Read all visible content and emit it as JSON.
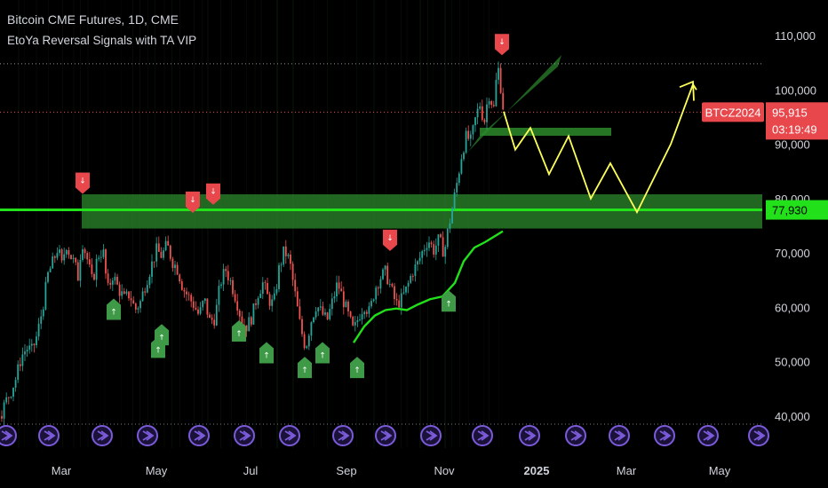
{
  "header": {
    "title": "Bitcoin CME Futures, 1D, CME",
    "indicator": "EtoYa Reversal Signals with TA VIP"
  },
  "chart_data": {
    "type": "line",
    "y_ticks": [
      "110,000",
      "100,000",
      "90,000",
      "80,000",
      "70,000",
      "60,000",
      "50,000",
      "40,000"
    ],
    "y_tick_values": [
      110000,
      100000,
      90000,
      80000,
      70000,
      60000,
      50000,
      40000
    ],
    "ylim": [
      35000,
      115000
    ],
    "x_ticks": [
      "Mar",
      "May",
      "Jul",
      "Sep",
      "Nov",
      "2025",
      "Mar",
      "May"
    ],
    "x_tick_bold": [
      false,
      false,
      false,
      false,
      false,
      true,
      false,
      false
    ],
    "support_line": {
      "value": 77930,
      "label": "77,930"
    },
    "zone": {
      "low": 74500,
      "high": 80800
    },
    "current": {
      "symbol": "BTCZ2024",
      "price": "95,915",
      "countdown": "03:19:49",
      "value": 95915
    },
    "high_level": 104800,
    "price_path": [
      {
        "t": 0,
        "v": 40000
      },
      {
        "t": 6,
        "v": 42500
      },
      {
        "t": 12,
        "v": 44500
      },
      {
        "t": 18,
        "v": 47000
      },
      {
        "t": 24,
        "v": 51000
      },
      {
        "t": 30,
        "v": 52500
      },
      {
        "t": 36,
        "v": 52000
      },
      {
        "t": 42,
        "v": 55000
      },
      {
        "t": 48,
        "v": 60000
      },
      {
        "t": 54,
        "v": 66000
      },
      {
        "t": 60,
        "v": 68500
      },
      {
        "t": 65,
        "v": 71000
      },
      {
        "t": 70,
        "v": 67500
      },
      {
        "t": 74,
        "v": 72000
      },
      {
        "t": 78,
        "v": 70000
      },
      {
        "t": 84,
        "v": 68000
      },
      {
        "t": 88,
        "v": 65500
      },
      {
        "t": 92,
        "v": 72500
      },
      {
        "t": 98,
        "v": 69000
      },
      {
        "t": 104,
        "v": 64500
      },
      {
        "t": 110,
        "v": 69500
      },
      {
        "t": 116,
        "v": 70500
      },
      {
        "t": 121,
        "v": 63000
      },
      {
        "t": 127,
        "v": 66000
      },
      {
        "t": 133,
        "v": 63500
      },
      {
        "t": 140,
        "v": 61500
      },
      {
        "t": 146,
        "v": 62500
      },
      {
        "t": 152,
        "v": 59500
      },
      {
        "t": 158,
        "v": 61000
      },
      {
        "t": 164,
        "v": 64500
      },
      {
        "t": 170,
        "v": 67500
      },
      {
        "t": 176,
        "v": 70500
      },
      {
        "t": 182,
        "v": 69500
      },
      {
        "t": 188,
        "v": 71500
      },
      {
        "t": 194,
        "v": 68500
      },
      {
        "t": 200,
        "v": 67000
      },
      {
        "t": 206,
        "v": 63500
      },
      {
        "t": 212,
        "v": 62000
      },
      {
        "t": 218,
        "v": 60500
      },
      {
        "t": 224,
        "v": 58500
      },
      {
        "t": 230,
        "v": 61500
      },
      {
        "t": 236,
        "v": 57500
      },
      {
        "t": 242,
        "v": 58000
      },
      {
        "t": 248,
        "v": 64500
      },
      {
        "t": 254,
        "v": 67000
      },
      {
        "t": 260,
        "v": 64500
      },
      {
        "t": 266,
        "v": 61500
      },
      {
        "t": 272,
        "v": 57500
      },
      {
        "t": 278,
        "v": 56500
      },
      {
        "t": 284,
        "v": 58500
      },
      {
        "t": 290,
        "v": 62500
      },
      {
        "t": 296,
        "v": 64500
      },
      {
        "t": 302,
        "v": 61500
      },
      {
        "t": 308,
        "v": 60500
      },
      {
        "t": 314,
        "v": 67000
      },
      {
        "t": 320,
        "v": 70500
      },
      {
        "t": 326,
        "v": 68500
      },
      {
        "t": 332,
        "v": 62500
      },
      {
        "t": 338,
        "v": 56500
      },
      {
        "t": 344,
        "v": 52500
      },
      {
        "t": 350,
        "v": 57500
      },
      {
        "t": 356,
        "v": 60500
      },
      {
        "t": 362,
        "v": 59000
      },
      {
        "t": 368,
        "v": 57500
      },
      {
        "t": 374,
        "v": 61000
      },
      {
        "t": 380,
        "v": 64500
      },
      {
        "t": 386,
        "v": 61500
      },
      {
        "t": 392,
        "v": 58500
      },
      {
        "t": 398,
        "v": 55500
      },
      {
        "t": 404,
        "v": 58500
      },
      {
        "t": 410,
        "v": 60500
      },
      {
        "t": 416,
        "v": 59000
      },
      {
        "t": 422,
        "v": 63500
      },
      {
        "t": 428,
        "v": 65500
      },
      {
        "t": 434,
        "v": 66500
      },
      {
        "t": 440,
        "v": 63500
      },
      {
        "t": 446,
        "v": 60500
      },
      {
        "t": 452,
        "v": 61500
      },
      {
        "t": 458,
        "v": 63500
      },
      {
        "t": 464,
        "v": 66500
      },
      {
        "t": 470,
        "v": 68000
      },
      {
        "t": 476,
        "v": 70500
      },
      {
        "t": 482,
        "v": 72500
      },
      {
        "t": 488,
        "v": 70500
      },
      {
        "t": 494,
        "v": 72500
      },
      {
        "t": 500,
        "v": 70000
      },
      {
        "t": 504,
        "v": 74000
      },
      {
        "t": 510,
        "v": 79000
      },
      {
        "t": 515,
        "v": 83500
      },
      {
        "t": 520,
        "v": 88500
      },
      {
        "t": 525,
        "v": 91500
      },
      {
        "t": 530,
        "v": 90500
      },
      {
        "t": 535,
        "v": 94500
      },
      {
        "t": 540,
        "v": 97500
      },
      {
        "t": 545,
        "v": 94000
      },
      {
        "t": 550,
        "v": 99500
      },
      {
        "t": 556,
        "v": 96500
      },
      {
        "t": 560,
        "v": 104800
      },
      {
        "t": 563,
        "v": 101500
      },
      {
        "t": 567,
        "v": 95915
      }
    ],
    "sma_path": [
      {
        "t": 398,
        "v": 53500
      },
      {
        "t": 410,
        "v": 56500
      },
      {
        "t": 422,
        "v": 58500
      },
      {
        "t": 434,
        "v": 59500
      },
      {
        "t": 446,
        "v": 59800
      },
      {
        "t": 458,
        "v": 59500
      },
      {
        "t": 470,
        "v": 60500
      },
      {
        "t": 484,
        "v": 61500
      },
      {
        "t": 498,
        "v": 62000
      },
      {
        "t": 512,
        "v": 64500
      },
      {
        "t": 522,
        "v": 68500
      },
      {
        "t": 534,
        "v": 71000
      },
      {
        "t": 546,
        "v": 72000
      },
      {
        "t": 556,
        "v": 73000
      },
      {
        "t": 566,
        "v": 74000
      }
    ],
    "forecast_path": [
      {
        "t": 567,
        "v": 96000
      },
      {
        "t": 580,
        "v": 89000
      },
      {
        "t": 597,
        "v": 93000
      },
      {
        "t": 618,
        "v": 84500
      },
      {
        "t": 640,
        "v": 91500
      },
      {
        "t": 665,
        "v": 80000
      },
      {
        "t": 687,
        "v": 86500
      },
      {
        "t": 717,
        "v": 77500
      },
      {
        "t": 755,
        "v": 90000
      },
      {
        "t": 780,
        "v": 101000
      },
      {
        "t": 784,
        "v": 100000
      }
    ],
    "sell_signals": [
      {
        "t": 93,
        "v": 83000,
        "label": "↓"
      },
      {
        "t": 217,
        "v": 79500,
        "label": "↓"
      },
      {
        "t": 240,
        "v": 81000,
        "label": "↓"
      },
      {
        "t": 439,
        "v": 72500,
        "label": "↓"
      },
      {
        "t": 565,
        "v": 108500,
        "label": "↓"
      }
    ],
    "buy_signals": [
      {
        "t": 128,
        "v": 59500,
        "label": "↑"
      },
      {
        "t": 182,
        "v": 54800,
        "label": "↑"
      },
      {
        "t": 178,
        "v": 52500,
        "label": "↑"
      },
      {
        "t": 269,
        "v": 55500,
        "label": "↑"
      },
      {
        "t": 300,
        "v": 51500,
        "label": "↑"
      },
      {
        "t": 343,
        "v": 48800,
        "label": "↑"
      },
      {
        "t": 363,
        "v": 51500,
        "label": "↑"
      },
      {
        "t": 402,
        "v": 48800,
        "label": "↑"
      },
      {
        "t": 505,
        "v": 61000,
        "label": "↑"
      }
    ],
    "colors": {
      "background": "#000000",
      "support": "#22e01a",
      "zone": "#2c8a2c",
      "sell": "#e8474b",
      "buy": "#3f9a47",
      "forecast": "#ffff59",
      "up_candle": "#26a69a",
      "down_candle": "#ef5350",
      "sma": "#22e01a",
      "axis_text": "#d1d4dc",
      "purple_icon": "#7b5bd9"
    }
  }
}
